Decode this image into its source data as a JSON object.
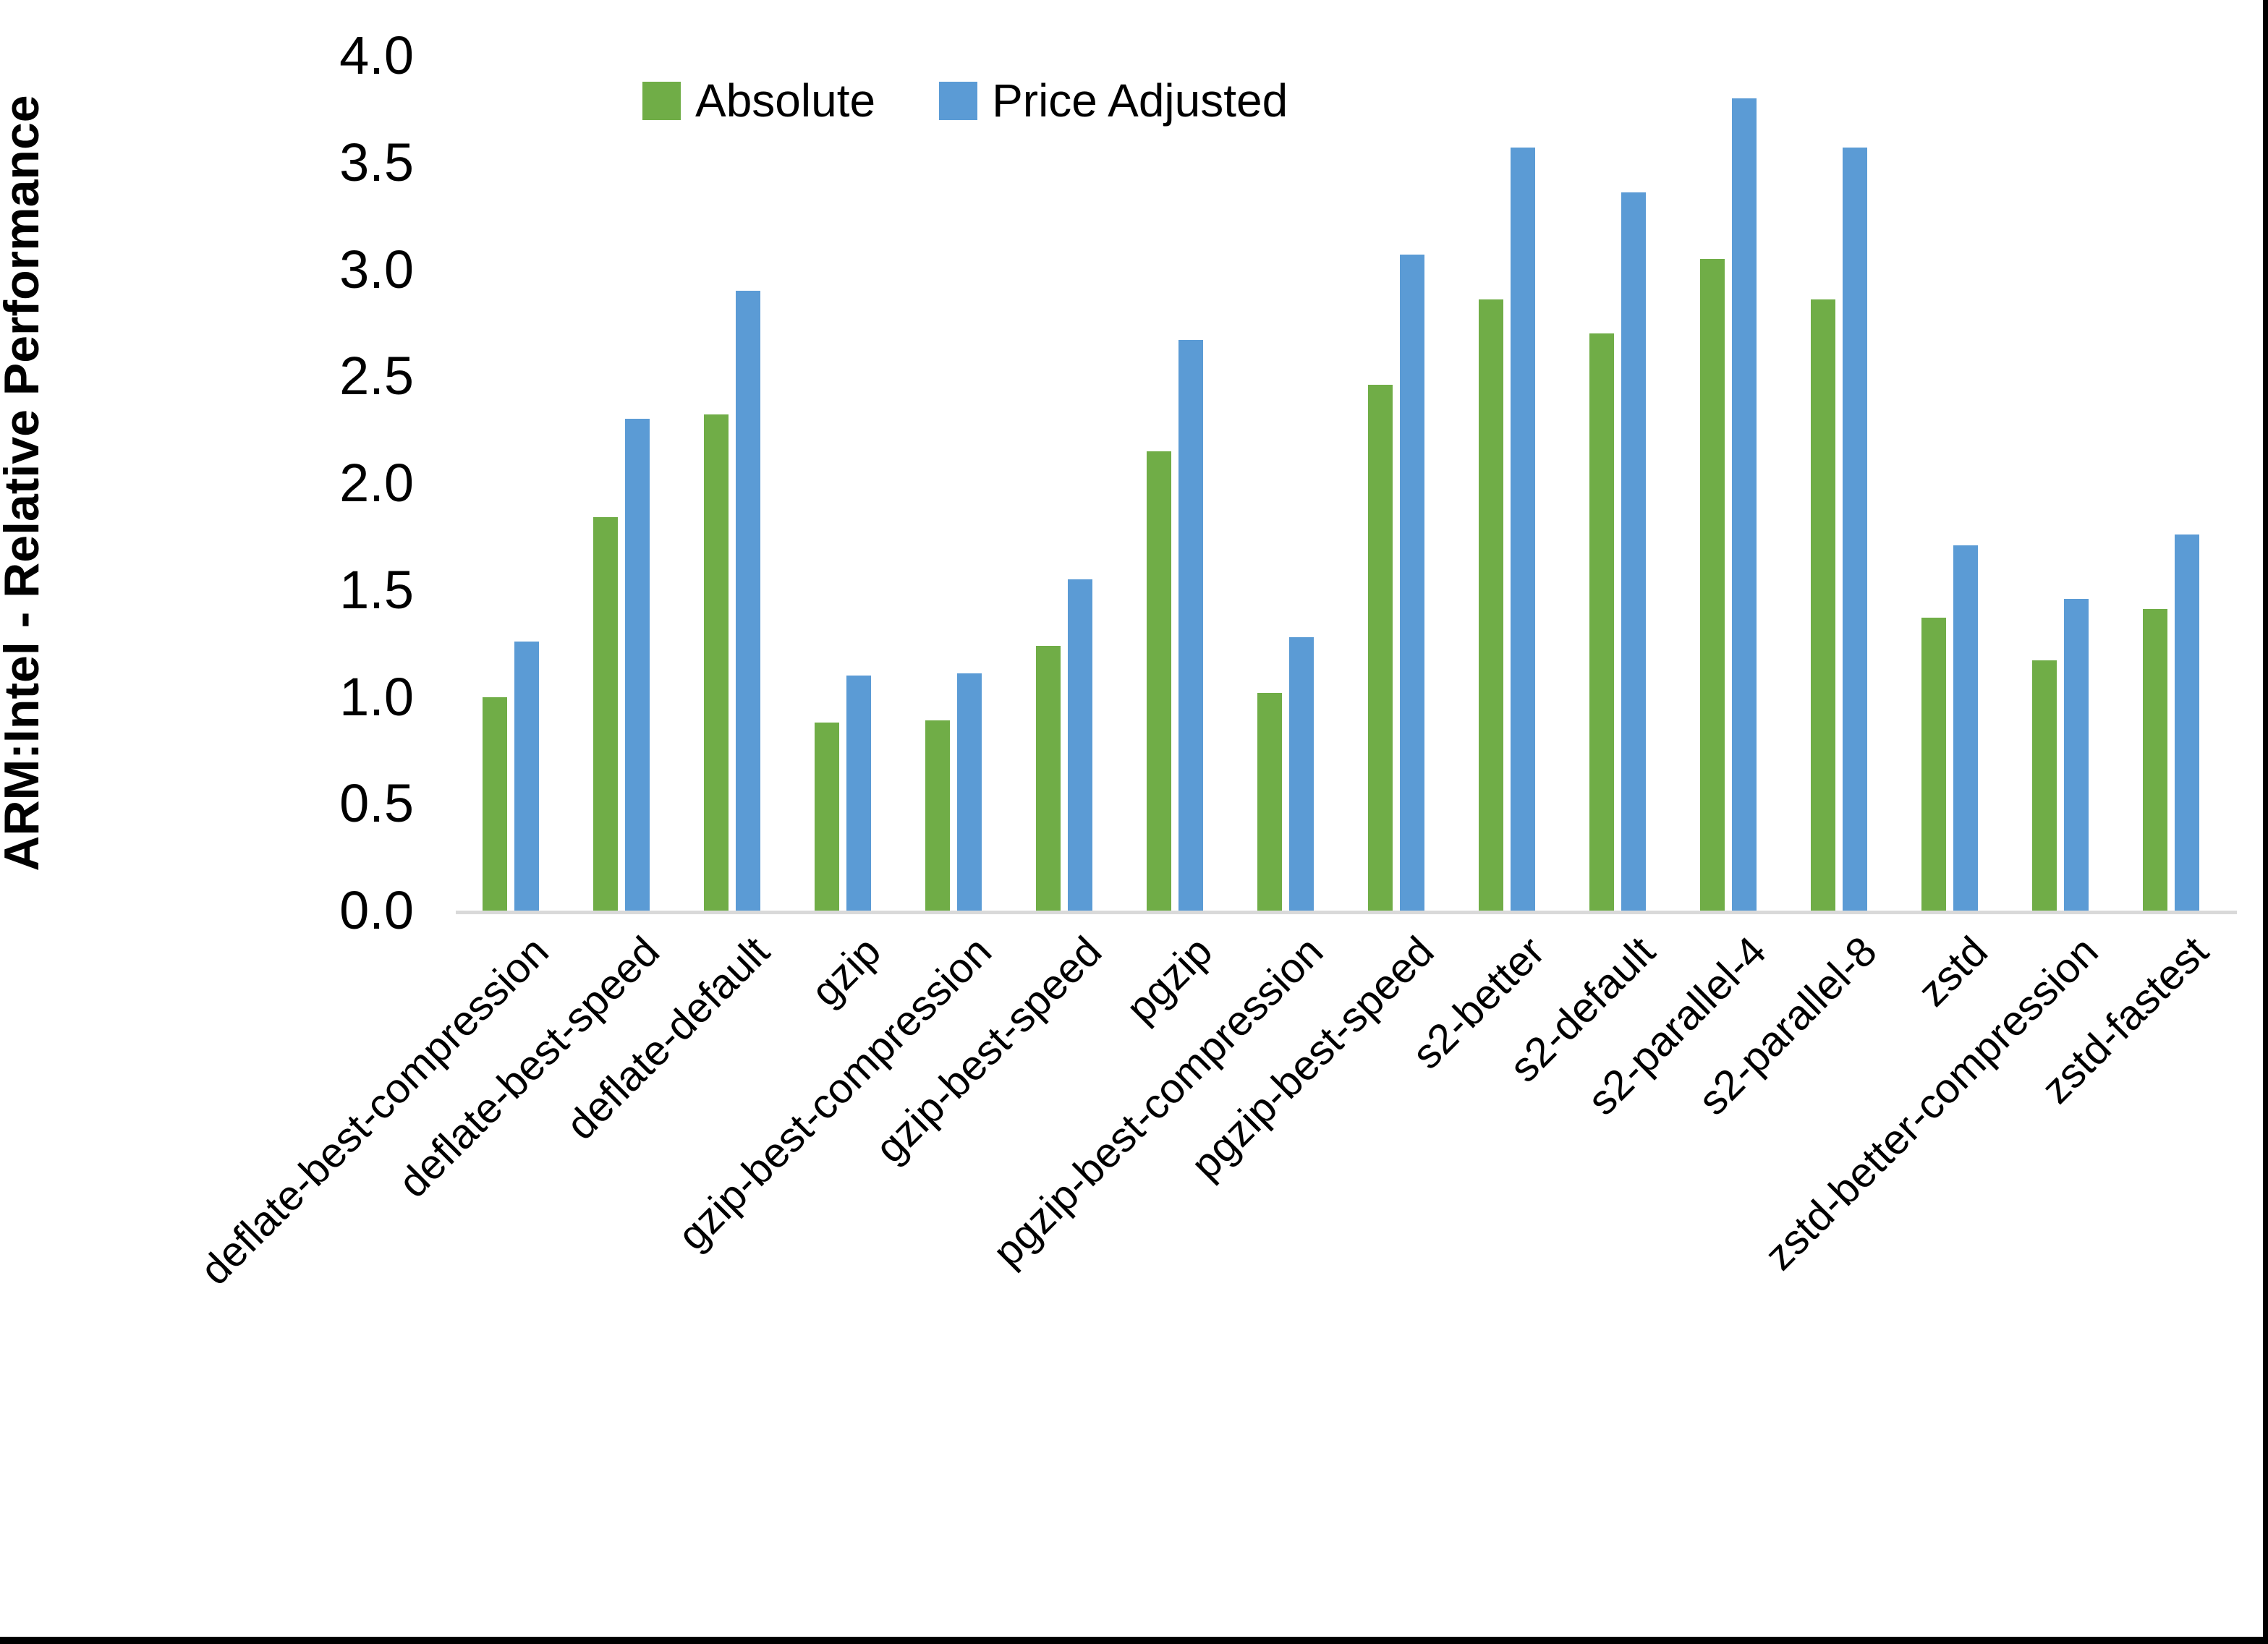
{
  "page": {
    "background": "#FFFFFF",
    "right_border_color": "#000000",
    "bottom_border_color": "#000000"
  },
  "chart_data": {
    "type": "bar",
    "title": "",
    "xlabel": "",
    "ylabel": "ARM:Intel - Relative Performance",
    "ylim": [
      0.0,
      4.0
    ],
    "ytick_step": 0.5,
    "ytick_labels": [
      "0.0",
      "0.5",
      "1.0",
      "1.5",
      "2.0",
      "2.5",
      "3.0",
      "3.5",
      "4.0"
    ],
    "grid": false,
    "legend_position": "top-center",
    "axis_line_color": "#D9D9D9",
    "text_color": "#000000",
    "categories": [
      "deflate-best-compression",
      "deflate-best-speed",
      "deflate-default",
      "gzip",
      "gzip-best-compression",
      "gzip-best-speed",
      "pgzip",
      "pgzip-best-compression",
      "pgzip-best-speed",
      "s2-better",
      "s2-default",
      "s2-parallel-4",
      "s2-parallel-8",
      "zstd",
      "zstd-better-compression",
      "zstd-fastest"
    ],
    "series": [
      {
        "name": "Absolute",
        "color": "#70AD47",
        "values": [
          1.0,
          1.84,
          2.32,
          0.88,
          0.89,
          1.24,
          2.15,
          1.02,
          2.46,
          2.86,
          2.7,
          3.05,
          2.86,
          1.37,
          1.17,
          1.41
        ]
      },
      {
        "name": "Price Adjusted",
        "color": "#5B9BD5",
        "values": [
          1.26,
          2.3,
          2.9,
          1.1,
          1.11,
          1.55,
          2.67,
          1.28,
          3.07,
          3.57,
          3.36,
          3.8,
          3.57,
          1.71,
          1.46,
          1.76
        ]
      }
    ]
  }
}
